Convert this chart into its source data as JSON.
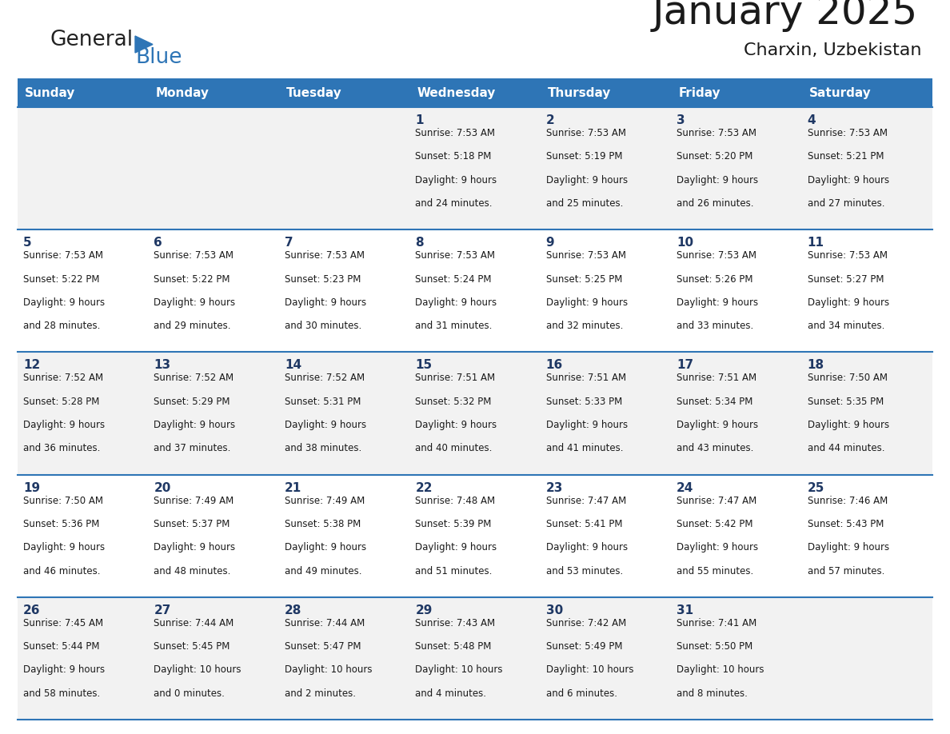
{
  "title": "January 2025",
  "subtitle": "Charxin, Uzbekistan",
  "days_of_week": [
    "Sunday",
    "Monday",
    "Tuesday",
    "Wednesday",
    "Thursday",
    "Friday",
    "Saturday"
  ],
  "header_bg": "#2E75B6",
  "header_text": "#FFFFFF",
  "row_bg_odd": "#F2F2F2",
  "row_bg_even": "#FFFFFF",
  "separator_color": "#2E75B6",
  "day_num_color": "#1F3864",
  "calendar_data": [
    [
      null,
      null,
      null,
      {
        "day": 1,
        "sunrise": "7:53 AM",
        "sunset": "5:18 PM",
        "daylight_h": "9 hours",
        "daylight_m": "and 24 minutes."
      },
      {
        "day": 2,
        "sunrise": "7:53 AM",
        "sunset": "5:19 PM",
        "daylight_h": "9 hours",
        "daylight_m": "and 25 minutes."
      },
      {
        "day": 3,
        "sunrise": "7:53 AM",
        "sunset": "5:20 PM",
        "daylight_h": "9 hours",
        "daylight_m": "and 26 minutes."
      },
      {
        "day": 4,
        "sunrise": "7:53 AM",
        "sunset": "5:21 PM",
        "daylight_h": "9 hours",
        "daylight_m": "and 27 minutes."
      }
    ],
    [
      {
        "day": 5,
        "sunrise": "7:53 AM",
        "sunset": "5:22 PM",
        "daylight_h": "9 hours",
        "daylight_m": "and 28 minutes."
      },
      {
        "day": 6,
        "sunrise": "7:53 AM",
        "sunset": "5:22 PM",
        "daylight_h": "9 hours",
        "daylight_m": "and 29 minutes."
      },
      {
        "day": 7,
        "sunrise": "7:53 AM",
        "sunset": "5:23 PM",
        "daylight_h": "9 hours",
        "daylight_m": "and 30 minutes."
      },
      {
        "day": 8,
        "sunrise": "7:53 AM",
        "sunset": "5:24 PM",
        "daylight_h": "9 hours",
        "daylight_m": "and 31 minutes."
      },
      {
        "day": 9,
        "sunrise": "7:53 AM",
        "sunset": "5:25 PM",
        "daylight_h": "9 hours",
        "daylight_m": "and 32 minutes."
      },
      {
        "day": 10,
        "sunrise": "7:53 AM",
        "sunset": "5:26 PM",
        "daylight_h": "9 hours",
        "daylight_m": "and 33 minutes."
      },
      {
        "day": 11,
        "sunrise": "7:53 AM",
        "sunset": "5:27 PM",
        "daylight_h": "9 hours",
        "daylight_m": "and 34 minutes."
      }
    ],
    [
      {
        "day": 12,
        "sunrise": "7:52 AM",
        "sunset": "5:28 PM",
        "daylight_h": "9 hours",
        "daylight_m": "and 36 minutes."
      },
      {
        "day": 13,
        "sunrise": "7:52 AM",
        "sunset": "5:29 PM",
        "daylight_h": "9 hours",
        "daylight_m": "and 37 minutes."
      },
      {
        "day": 14,
        "sunrise": "7:52 AM",
        "sunset": "5:31 PM",
        "daylight_h": "9 hours",
        "daylight_m": "and 38 minutes."
      },
      {
        "day": 15,
        "sunrise": "7:51 AM",
        "sunset": "5:32 PM",
        "daylight_h": "9 hours",
        "daylight_m": "and 40 minutes."
      },
      {
        "day": 16,
        "sunrise": "7:51 AM",
        "sunset": "5:33 PM",
        "daylight_h": "9 hours",
        "daylight_m": "and 41 minutes."
      },
      {
        "day": 17,
        "sunrise": "7:51 AM",
        "sunset": "5:34 PM",
        "daylight_h": "9 hours",
        "daylight_m": "and 43 minutes."
      },
      {
        "day": 18,
        "sunrise": "7:50 AM",
        "sunset": "5:35 PM",
        "daylight_h": "9 hours",
        "daylight_m": "and 44 minutes."
      }
    ],
    [
      {
        "day": 19,
        "sunrise": "7:50 AM",
        "sunset": "5:36 PM",
        "daylight_h": "9 hours",
        "daylight_m": "and 46 minutes."
      },
      {
        "day": 20,
        "sunrise": "7:49 AM",
        "sunset": "5:37 PM",
        "daylight_h": "9 hours",
        "daylight_m": "and 48 minutes."
      },
      {
        "day": 21,
        "sunrise": "7:49 AM",
        "sunset": "5:38 PM",
        "daylight_h": "9 hours",
        "daylight_m": "and 49 minutes."
      },
      {
        "day": 22,
        "sunrise": "7:48 AM",
        "sunset": "5:39 PM",
        "daylight_h": "9 hours",
        "daylight_m": "and 51 minutes."
      },
      {
        "day": 23,
        "sunrise": "7:47 AM",
        "sunset": "5:41 PM",
        "daylight_h": "9 hours",
        "daylight_m": "and 53 minutes."
      },
      {
        "day": 24,
        "sunrise": "7:47 AM",
        "sunset": "5:42 PM",
        "daylight_h": "9 hours",
        "daylight_m": "and 55 minutes."
      },
      {
        "day": 25,
        "sunrise": "7:46 AM",
        "sunset": "5:43 PM",
        "daylight_h": "9 hours",
        "daylight_m": "and 57 minutes."
      }
    ],
    [
      {
        "day": 26,
        "sunrise": "7:45 AM",
        "sunset": "5:44 PM",
        "daylight_h": "9 hours",
        "daylight_m": "and 58 minutes."
      },
      {
        "day": 27,
        "sunrise": "7:44 AM",
        "sunset": "5:45 PM",
        "daylight_h": "10 hours",
        "daylight_m": "and 0 minutes."
      },
      {
        "day": 28,
        "sunrise": "7:44 AM",
        "sunset": "5:47 PM",
        "daylight_h": "10 hours",
        "daylight_m": "and 2 minutes."
      },
      {
        "day": 29,
        "sunrise": "7:43 AM",
        "sunset": "5:48 PM",
        "daylight_h": "10 hours",
        "daylight_m": "and 4 minutes."
      },
      {
        "day": 30,
        "sunrise": "7:42 AM",
        "sunset": "5:49 PM",
        "daylight_h": "10 hours",
        "daylight_m": "and 6 minutes."
      },
      {
        "day": 31,
        "sunrise": "7:41 AM",
        "sunset": "5:50 PM",
        "daylight_h": "10 hours",
        "daylight_m": "and 8 minutes."
      },
      null
    ]
  ]
}
